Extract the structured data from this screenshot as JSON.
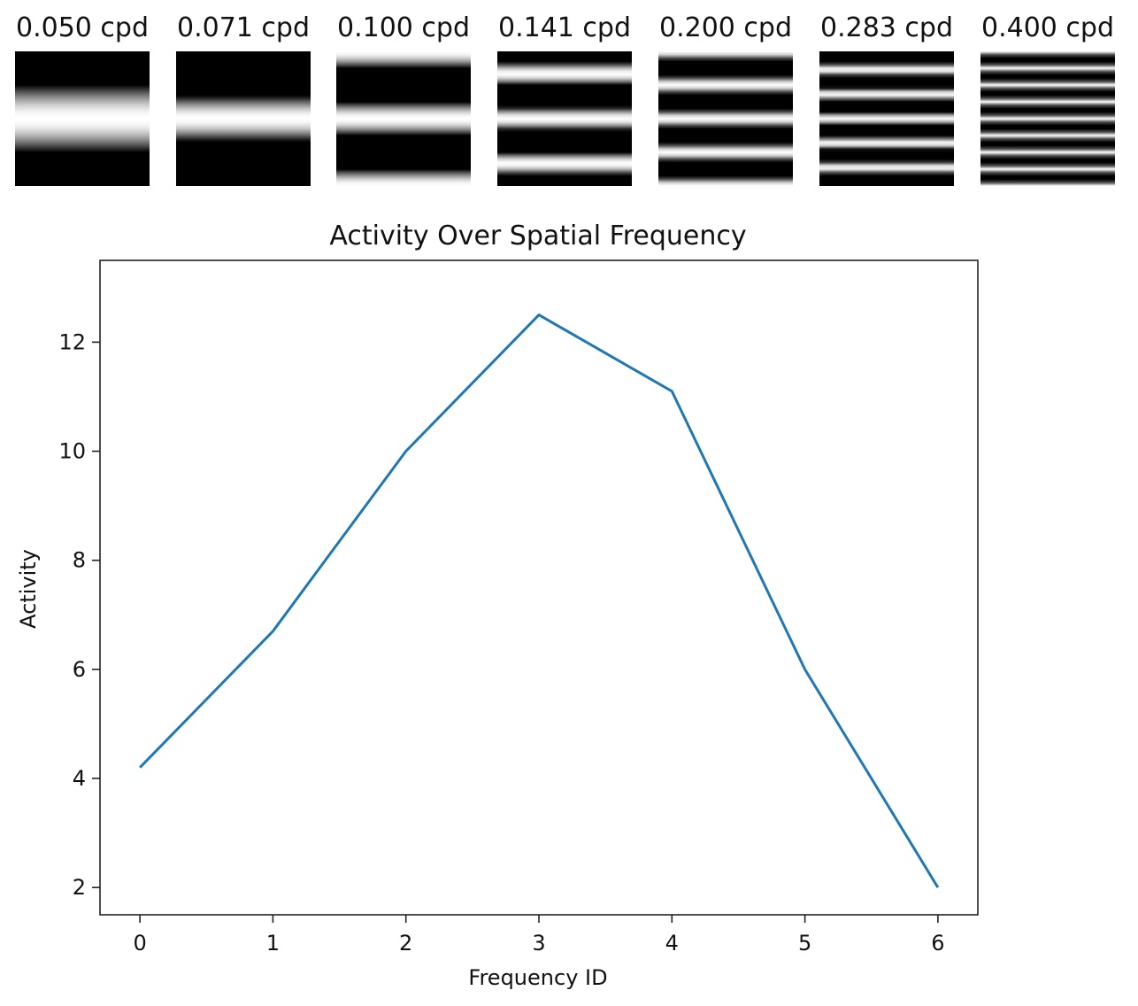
{
  "stimuli": {
    "items": [
      {
        "label": "0.050 cpd",
        "cycles": 1.0
      },
      {
        "label": "0.071 cpd",
        "cycles": 1.5
      },
      {
        "label": "0.100 cpd",
        "cycles": 2.0
      },
      {
        "label": "0.141 cpd",
        "cycles": 3.0
      },
      {
        "label": "0.200 cpd",
        "cycles": 4.0
      },
      {
        "label": "0.283 cpd",
        "cycles": 5.5
      },
      {
        "label": "0.400 cpd",
        "cycles": 8.0
      }
    ]
  },
  "chart_data": {
    "type": "line",
    "title": "Activity Over Spatial Frequency",
    "xlabel": "Frequency ID",
    "ylabel": "Activity",
    "x": [
      0,
      1,
      2,
      3,
      4,
      5,
      6
    ],
    "values": [
      4.2,
      6.7,
      10.0,
      12.5,
      11.1,
      6.0,
      2.0
    ],
    "xlim": [
      -0.3,
      6.3
    ],
    "ylim": [
      1.5,
      13.5
    ],
    "xticks": [
      0,
      1,
      2,
      3,
      4,
      5,
      6
    ],
    "yticks": [
      2,
      4,
      6,
      8,
      10,
      12
    ],
    "line_color": "#1f77b4",
    "grid": false
  }
}
